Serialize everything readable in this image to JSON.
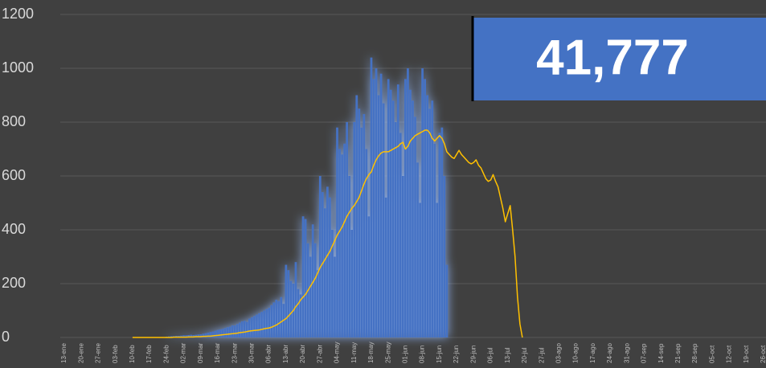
{
  "chart_data": {
    "type": "bar",
    "annotation": "41,777",
    "categories": [
      "13-ene",
      null,
      null,
      null,
      null,
      null,
      null,
      "20-ene",
      null,
      null,
      null,
      null,
      null,
      null,
      "27-ene",
      null,
      null,
      null,
      null,
      null,
      null,
      "03-feb",
      null,
      null,
      null,
      null,
      null,
      null,
      "10-feb",
      null,
      null,
      null,
      null,
      null,
      null,
      "17-feb",
      null,
      null,
      null,
      null,
      null,
      null,
      "24-feb",
      null,
      null,
      null,
      null,
      null,
      null,
      "02-mar",
      null,
      null,
      null,
      null,
      null,
      null,
      "09-mar",
      null,
      null,
      null,
      null,
      null,
      null,
      "16-mar",
      null,
      null,
      null,
      null,
      null,
      null,
      "23-mar",
      null,
      null,
      null,
      null,
      null,
      null,
      "30-mar",
      null,
      null,
      null,
      null,
      null,
      null,
      "06-abr",
      null,
      null,
      null,
      null,
      null,
      null,
      "13-abr",
      null,
      null,
      null,
      null,
      null,
      null,
      "20-abr",
      null,
      null,
      null,
      null,
      null,
      null,
      "27-abr",
      null,
      null,
      null,
      null,
      null,
      null,
      "04-may",
      null,
      null,
      null,
      null,
      null,
      null,
      "11-may",
      null,
      null,
      null,
      null,
      null,
      null,
      "18-may",
      null,
      null,
      null,
      null,
      null,
      null,
      "25-may",
      null,
      null,
      null,
      null,
      null,
      null,
      "01-jun",
      null,
      null,
      null,
      null,
      null,
      null,
      "08-jun",
      null,
      null,
      null,
      null,
      null,
      null,
      "15-jun",
      null,
      null,
      null,
      null,
      null,
      null,
      "22-jun",
      null,
      null,
      null,
      null,
      null,
      null,
      "29-jun",
      null,
      null,
      null,
      null,
      null,
      null,
      "06-jul",
      null,
      null,
      null,
      null,
      null,
      null,
      "13-jul",
      null,
      null,
      null,
      null,
      null,
      null,
      "20-jul",
      null,
      null,
      null,
      null,
      null,
      null,
      "27-jul",
      null,
      null,
      null,
      null,
      null,
      null,
      "03-ago",
      null,
      null,
      null,
      null,
      null,
      null,
      "10-ago",
      null,
      null,
      null,
      null,
      null,
      null,
      "17-ago",
      null,
      null,
      null,
      null,
      null,
      null,
      "24-ago",
      null,
      null,
      null,
      null,
      null,
      null,
      "31-ago",
      null,
      null,
      null,
      null,
      null,
      null,
      "07-sep",
      null,
      null,
      null,
      null,
      null,
      null,
      "14-sep",
      null,
      null,
      null,
      null,
      null,
      null,
      "21-sep",
      null,
      null,
      null,
      null,
      null,
      null,
      "28-sep",
      null,
      null,
      null,
      null,
      null,
      null,
      "05-oct",
      null,
      null,
      null,
      null,
      null,
      null,
      "12-oct",
      null,
      null,
      null,
      null,
      null,
      null,
      "19-oct",
      null,
      null,
      null,
      null,
      null,
      null,
      "26-oct"
    ],
    "series": [
      {
        "type": "bar",
        "color": "#4472c4",
        "values": [
          null,
          null,
          null,
          null,
          null,
          null,
          null,
          null,
          null,
          null,
          null,
          null,
          null,
          null,
          null,
          null,
          null,
          null,
          null,
          null,
          null,
          null,
          null,
          null,
          null,
          null,
          null,
          null,
          null,
          null,
          null,
          null,
          null,
          null,
          null,
          null,
          null,
          null,
          null,
          null,
          null,
          null,
          3,
          4,
          5,
          5,
          6,
          6,
          7,
          8,
          8,
          9,
          10,
          9,
          10,
          11,
          12,
          14,
          16,
          18,
          20,
          22,
          25,
          28,
          30,
          32,
          35,
          38,
          40,
          45,
          45,
          50,
          55,
          60,
          62,
          58,
          70,
          75,
          80,
          85,
          90,
          95,
          100,
          105,
          110,
          120,
          130,
          140,
          135,
          150,
          125,
          270,
          250,
          210,
          200,
          280,
          180,
          160,
          450,
          440,
          350,
          300,
          420,
          350,
          250,
          600,
          540,
          480,
          560,
          520,
          400,
          300,
          780,
          700,
          680,
          720,
          800,
          600,
          400,
          800,
          900,
          850,
          780,
          830,
          700,
          450,
          1040,
          960,
          1000,
          900,
          980,
          870,
          520,
          960,
          920,
          880,
          800,
          940,
          760,
          600,
          960,
          1000,
          920,
          880,
          820,
          650,
          500,
          1000,
          960,
          900,
          850,
          880,
          720,
          500,
          760,
          780,
          600,
          270,
          null,
          null,
          null,
          null,
          null,
          null,
          null,
          null,
          null,
          null,
          null,
          null,
          null,
          null,
          null,
          null,
          null,
          null,
          null,
          null,
          null,
          null,
          null,
          null,
          null,
          null,
          null,
          null,
          null,
          null,
          null,
          null,
          null,
          null,
          null,
          null,
          null,
          null,
          null,
          null,
          null,
          null,
          null,
          null,
          null,
          null,
          null,
          null,
          null,
          null,
          null,
          null,
          null,
          null,
          null,
          null,
          null,
          null,
          null,
          null,
          null,
          null,
          null,
          null,
          null,
          null,
          null,
          null,
          null,
          null,
          null,
          null,
          null,
          null,
          null,
          null,
          null,
          null,
          null,
          null,
          null,
          null,
          null,
          null,
          null,
          null,
          null,
          null,
          null,
          null,
          null,
          null,
          null,
          null,
          null,
          null,
          null,
          null,
          null,
          null,
          null,
          null,
          null,
          null,
          null,
          null,
          null,
          null,
          null,
          null,
          null,
          null,
          null,
          null,
          null,
          null,
          null,
          null,
          null,
          null,
          null,
          null,
          null,
          null,
          null,
          null,
          null,
          null,
          null,
          null
        ]
      },
      {
        "type": "line",
        "color": "#ffc000",
        "values": [
          null,
          null,
          null,
          null,
          null,
          null,
          null,
          null,
          null,
          null,
          null,
          null,
          null,
          null,
          null,
          null,
          null,
          null,
          null,
          null,
          null,
          null,
          null,
          null,
          null,
          null,
          null,
          null,
          0,
          0,
          0,
          0,
          0,
          0,
          0,
          0,
          0,
          0,
          0,
          0,
          0,
          0,
          0,
          0,
          0,
          1,
          1,
          1,
          1,
          1,
          1,
          2,
          2,
          2,
          3,
          3,
          3,
          4,
          4,
          5,
          5,
          6,
          7,
          8,
          9,
          10,
          11,
          12,
          13,
          14,
          15,
          16,
          18,
          19,
          20,
          22,
          24,
          25,
          26,
          27,
          28,
          30,
          32,
          34,
          35,
          38,
          42,
          46,
          52,
          58,
          64,
          70,
          80,
          90,
          100,
          115,
          125,
          140,
          150,
          160,
          175,
          190,
          205,
          220,
          240,
          260,
          275,
          290,
          305,
          320,
          340,
          360,
          380,
          395,
          410,
          430,
          450,
          465,
          480,
          490,
          505,
          520,
          545,
          570,
          590,
          605,
          615,
          640,
          660,
          675,
          685,
          690,
          690,
          690,
          695,
          700,
          705,
          710,
          720,
          725,
          700,
          710,
          730,
          740,
          750,
          755,
          760,
          765,
          770,
          770,
          760,
          740,
          730,
          740,
          750,
          740,
          720,
          690,
          680,
          670,
          665,
          680,
          695,
          680,
          670,
          660,
          650,
          645,
          650,
          660,
          640,
          630,
          610,
          590,
          580,
          585,
          605,
          580,
          560,
          520,
          480,
          430,
          460,
          490,
          400,
          300,
          150,
          50,
          0,
          null,
          null,
          null,
          null,
          null,
          null,
          null,
          null,
          null,
          null,
          null,
          null,
          null,
          null,
          null,
          null,
          null,
          null,
          null,
          null,
          null,
          null,
          null,
          null,
          null,
          null,
          null,
          null,
          null,
          null,
          null,
          null,
          null,
          null,
          null,
          null,
          null,
          null,
          null,
          null,
          null,
          null,
          null,
          null,
          null,
          null,
          null,
          null,
          null,
          null,
          null,
          null,
          null,
          null,
          null,
          null,
          null,
          null,
          null,
          null,
          null,
          null,
          null,
          null,
          null,
          null,
          null,
          null,
          null,
          null,
          null,
          null,
          null,
          null,
          null,
          null,
          null,
          null,
          null,
          null,
          null,
          null,
          null,
          null,
          null,
          null,
          null,
          null,
          null,
          null,
          null,
          null,
          null,
          null,
          null,
          null,
          null,
          null,
          null
        ]
      }
    ],
    "ylim": [
      0,
      1200
    ],
    "yticks": [
      0,
      200,
      400,
      600,
      800,
      1000,
      1200
    ],
    "grid": true
  }
}
